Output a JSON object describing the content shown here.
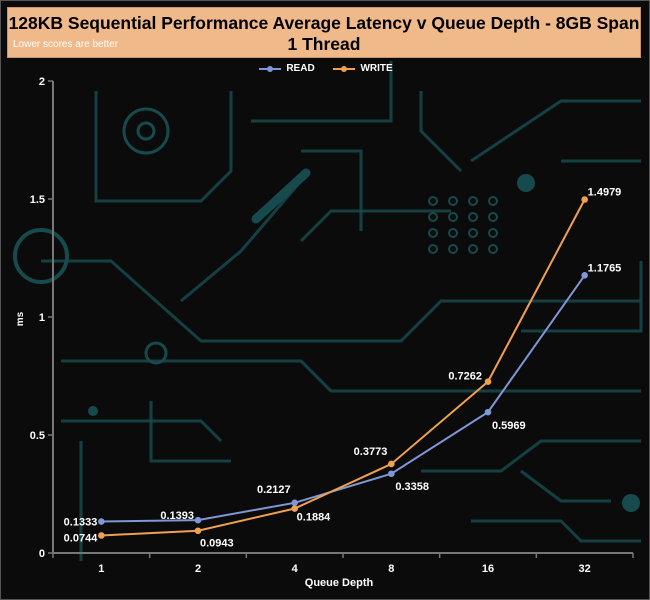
{
  "header": {
    "title": "128KB Sequential Performance Average Latency v Queue Depth - 8GB Span 1 Thread",
    "subtitle": "Lower scores are better"
  },
  "colors": {
    "header_bg": "#f0b98a",
    "read": "#7f97d6",
    "write": "#f0a050",
    "text": "#ffffff",
    "axis": "#777777",
    "circuit": "#164a4d"
  },
  "chart_data": {
    "type": "line",
    "title": "128KB Sequential Performance Average Latency v Queue Depth - 8GB Span 1 Thread",
    "subtitle": "Lower scores are better",
    "xlabel": "Queue Depth",
    "ylabel": "ms",
    "categories": [
      "1",
      "2",
      "4",
      "8",
      "16",
      "32"
    ],
    "ylim": [
      0,
      2
    ],
    "yticks": [
      "0",
      "0.5",
      "1",
      "1.5",
      "2"
    ],
    "legend_position": "top-center",
    "grid": false,
    "series": [
      {
        "name": "READ",
        "color": "#7f97d6",
        "values": [
          0.1333,
          0.1393,
          0.2127,
          0.3358,
          0.5969,
          1.1765
        ],
        "labels": [
          "0.1333",
          "0.1393",
          "0.2127",
          "0.3358",
          "0.5969",
          "1.1765"
        ]
      },
      {
        "name": "WRITE",
        "color": "#f0a050",
        "values": [
          0.0744,
          0.0943,
          0.1884,
          0.3773,
          0.7262,
          1.4979
        ],
        "labels": [
          "0.0744",
          "0.0943",
          "0.1884",
          "0.3773",
          "0.7262",
          "1.4979"
        ]
      }
    ]
  }
}
